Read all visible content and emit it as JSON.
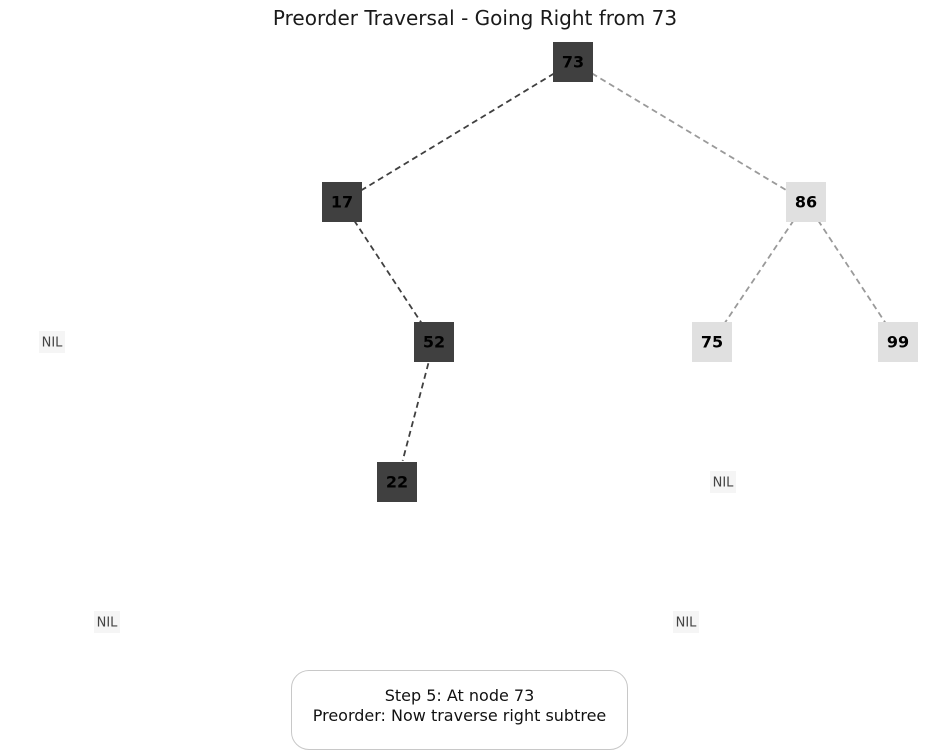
{
  "title": "Preorder Traversal - Going Right from 73",
  "colors": {
    "visited_fill": "#404040",
    "unvisited_fill": "#e0e0e0",
    "nil_fill": "#f5f5f5",
    "visited_edge": "#404040",
    "unvisited_edge": "#9a9a9a",
    "node_text": "#000000",
    "nil_text": "#444444"
  },
  "nodes": [
    {
      "id": "n73",
      "label": "73",
      "state": "visited"
    },
    {
      "id": "n17",
      "label": "17",
      "state": "visited"
    },
    {
      "id": "n86",
      "label": "86",
      "state": "unvisited"
    },
    {
      "id": "n52",
      "label": "52",
      "state": "visited"
    },
    {
      "id": "n75",
      "label": "75",
      "state": "unvisited"
    },
    {
      "id": "n99",
      "label": "99",
      "state": "unvisited"
    },
    {
      "id": "n22",
      "label": "22",
      "state": "visited"
    },
    {
      "id": "nil1",
      "label": "NIL",
      "state": "nil"
    },
    {
      "id": "nil2",
      "label": "NIL",
      "state": "nil"
    },
    {
      "id": "nil3",
      "label": "NIL",
      "state": "nil"
    },
    {
      "id": "nil4",
      "label": "NIL",
      "state": "nil"
    }
  ],
  "edges": [
    {
      "from": "n73",
      "to": "n17",
      "state": "visited"
    },
    {
      "from": "n73",
      "to": "n86",
      "state": "unvisited"
    },
    {
      "from": "n17",
      "to": "n52",
      "state": "visited"
    },
    {
      "from": "n52",
      "to": "n22",
      "state": "visited"
    },
    {
      "from": "n86",
      "to": "n75",
      "state": "unvisited"
    },
    {
      "from": "n86",
      "to": "n99",
      "state": "unvisited"
    }
  ],
  "status": {
    "line1": "Step 5: At node 73",
    "line2": "Preorder: Now traverse right subtree"
  }
}
